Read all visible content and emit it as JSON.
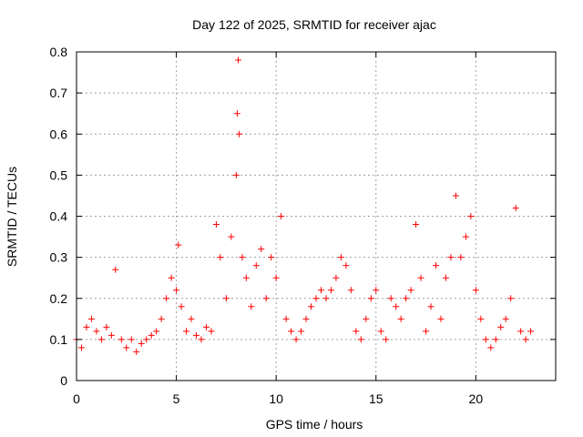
{
  "colors": {
    "series": "#ff0000",
    "grid": "#a0a0a0",
    "axis": "#000000",
    "background": "#ffffff"
  },
  "chart_data": {
    "type": "scatter",
    "title": "Day 122 of 2025, SRMTID for receiver ajac",
    "xlabel": "GPS time / hours",
    "ylabel": "SRMTID / TECUs",
    "xlim": [
      0,
      24
    ],
    "ylim": [
      0,
      0.8
    ],
    "xticks": [
      0,
      5,
      10,
      15,
      20
    ],
    "xtick_labels": [
      "0",
      "5",
      "10",
      "15",
      "20"
    ],
    "yticks": [
      0,
      0.1,
      0.2,
      0.3,
      0.4,
      0.5,
      0.6,
      0.7,
      0.8
    ],
    "ytick_labels": [
      "0",
      "0.1",
      "0.2",
      "0.3",
      "0.4",
      "0.5",
      "0.6",
      "0.7",
      "0.8"
    ],
    "grid": true,
    "marker": "+",
    "series": [
      {
        "name": "SRMTID",
        "x": [
          0.0,
          0.25,
          0.5,
          0.75,
          1.0,
          1.25,
          1.5,
          1.75,
          1.95,
          2.25,
          2.5,
          2.75,
          3.0,
          3.25,
          3.5,
          3.75,
          4.0,
          4.25,
          4.5,
          4.75,
          5.0,
          5.1,
          5.25,
          5.5,
          5.75,
          6.0,
          6.25,
          6.5,
          6.75,
          7.0,
          7.2,
          7.5,
          7.75,
          8.0,
          8.05,
          8.1,
          8.15,
          8.3,
          8.5,
          8.75,
          9.0,
          9.25,
          9.5,
          9.75,
          10.0,
          10.25,
          10.5,
          10.75,
          11.0,
          11.25,
          11.5,
          11.75,
          12.0,
          12.25,
          12.5,
          12.75,
          13.0,
          13.25,
          13.5,
          13.75,
          14.0,
          14.25,
          14.5,
          14.75,
          15.0,
          15.25,
          15.5,
          15.75,
          16.0,
          16.25,
          16.5,
          16.75,
          17.0,
          17.25,
          17.5,
          17.75,
          18.0,
          18.25,
          18.5,
          18.75,
          19.0,
          19.25,
          19.5,
          19.75,
          20.0,
          20.25,
          20.5,
          20.75,
          21.0,
          21.25,
          21.5,
          21.75,
          22.0,
          22.25,
          22.5,
          22.75
        ],
        "y": [
          0.1,
          0.08,
          0.13,
          0.15,
          0.12,
          0.1,
          0.13,
          0.11,
          0.27,
          0.1,
          0.08,
          0.1,
          0.07,
          0.09,
          0.1,
          0.11,
          0.12,
          0.15,
          0.2,
          0.25,
          0.22,
          0.33,
          0.18,
          0.12,
          0.15,
          0.11,
          0.1,
          0.13,
          0.12,
          0.38,
          0.3,
          0.2,
          0.35,
          0.5,
          0.65,
          0.78,
          0.6,
          0.3,
          0.25,
          0.18,
          0.28,
          0.32,
          0.2,
          0.3,
          0.25,
          0.4,
          0.15,
          0.12,
          0.1,
          0.12,
          0.15,
          0.18,
          0.2,
          0.22,
          0.2,
          0.22,
          0.25,
          0.3,
          0.28,
          0.22,
          0.12,
          0.1,
          0.15,
          0.2,
          0.22,
          0.12,
          0.1,
          0.2,
          0.18,
          0.15,
          0.2,
          0.22,
          0.38,
          0.25,
          0.12,
          0.18,
          0.28,
          0.15,
          0.25,
          0.3,
          0.45,
          0.3,
          0.35,
          0.4,
          0.22,
          0.15,
          0.1,
          0.08,
          0.1,
          0.13,
          0.15,
          0.2,
          0.42,
          0.12,
          0.1,
          0.12
        ]
      }
    ]
  }
}
